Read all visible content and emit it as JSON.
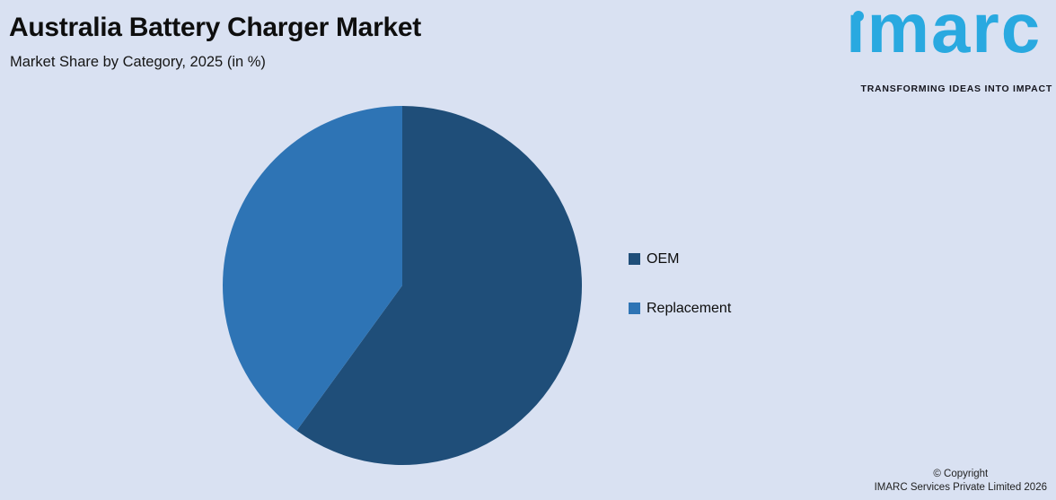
{
  "page": {
    "background": "#D9E1F2"
  },
  "header": {
    "title": "Australia Battery Charger Market",
    "subtitle": "Market Share by Category, 2025 (in %)"
  },
  "logo": {
    "brand": "imarc",
    "tagline": "TRANSFORMING IDEAS INTO IMPACT",
    "brand_color": "#29A9E0",
    "tagline_color": "#15151E"
  },
  "chart_data": {
    "type": "pie",
    "title": "Australia Battery Charger Market",
    "subtitle": "Market Share by Category, 2025 (in %)",
    "categories": [
      "OEM",
      "Replacement"
    ],
    "values": [
      60,
      40
    ],
    "colors": [
      "#1F4E79",
      "#2E74B5"
    ],
    "start_angle_deg": 0,
    "direction": "clockwise",
    "legend_position": "right",
    "data_labels_shown": false
  },
  "legend": {
    "items": [
      {
        "label": "OEM",
        "color": "#1F4E79"
      },
      {
        "label": "Replacement",
        "color": "#2E74B5"
      }
    ]
  },
  "footer": {
    "line1": "© Copyright",
    "line2": "IMARC Services Private Limited 2026"
  }
}
